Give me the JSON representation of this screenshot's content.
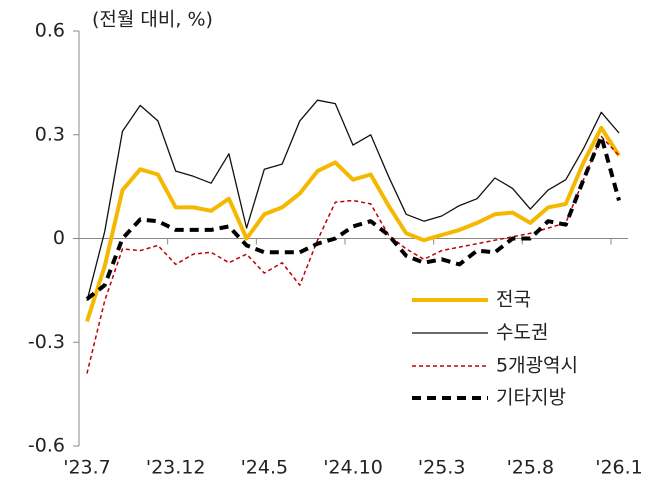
{
  "chart_data": {
    "type": "line",
    "title": "(전월 대비, %)",
    "categories": [
      "'23.7",
      null,
      null,
      null,
      null,
      "'23.12",
      null,
      null,
      null,
      null,
      "'24.5",
      null,
      null,
      null,
      null,
      "'24.10",
      null,
      null,
      null,
      null,
      "'25.3",
      null,
      null,
      null,
      null,
      "'25.8",
      null,
      null,
      null,
      null,
      "'26.1"
    ],
    "series": [
      {
        "name": "전국",
        "color": "#f5b800",
        "values": [
          -0.24,
          -0.08,
          0.14,
          0.2,
          0.185,
          0.09,
          0.09,
          0.08,
          0.115,
          0.0,
          0.07,
          0.09,
          0.13,
          0.195,
          0.22,
          0.17,
          0.185,
          0.095,
          0.015,
          -0.005,
          0.01,
          0.025,
          0.045,
          0.07,
          0.075,
          0.045,
          0.09,
          0.1,
          0.22,
          0.32,
          0.24
        ]
      },
      {
        "name": "수도권",
        "color": "#111111",
        "values": [
          -0.18,
          0.02,
          0.31,
          0.385,
          0.34,
          0.195,
          0.18,
          0.16,
          0.245,
          0.03,
          0.2,
          0.215,
          0.34,
          0.4,
          0.39,
          0.27,
          0.3,
          0.18,
          0.07,
          0.05,
          0.065,
          0.095,
          0.115,
          0.175,
          0.145,
          0.085,
          0.14,
          0.17,
          0.26,
          0.365,
          0.305
        ]
      },
      {
        "name": "5개광역시",
        "color": "#c00000",
        "values": [
          -0.39,
          -0.18,
          -0.03,
          -0.035,
          -0.02,
          -0.075,
          -0.045,
          -0.04,
          -0.07,
          -0.045,
          -0.1,
          -0.07,
          -0.135,
          -0.005,
          0.105,
          0.11,
          0.1,
          0.01,
          -0.03,
          -0.06,
          -0.035,
          -0.025,
          -0.015,
          -0.005,
          0.005,
          0.015,
          0.03,
          0.045,
          0.17,
          0.295,
          0.24
        ]
      },
      {
        "name": "기타지방",
        "color": "#000000",
        "values": [
          -0.175,
          -0.135,
          0.0,
          0.055,
          0.05,
          0.025,
          0.025,
          0.025,
          0.035,
          -0.02,
          -0.04,
          -0.04,
          -0.04,
          -0.015,
          0.0,
          0.035,
          0.05,
          0.01,
          -0.05,
          -0.07,
          -0.06,
          -0.075,
          -0.035,
          -0.04,
          0.0,
          0.0,
          0.05,
          0.04,
          0.17,
          0.295,
          0.11
        ]
      }
    ],
    "ylim": [
      -0.6,
      0.6
    ],
    "yticks": [
      0.6,
      0.3,
      0,
      -0.3,
      -0.6
    ]
  }
}
